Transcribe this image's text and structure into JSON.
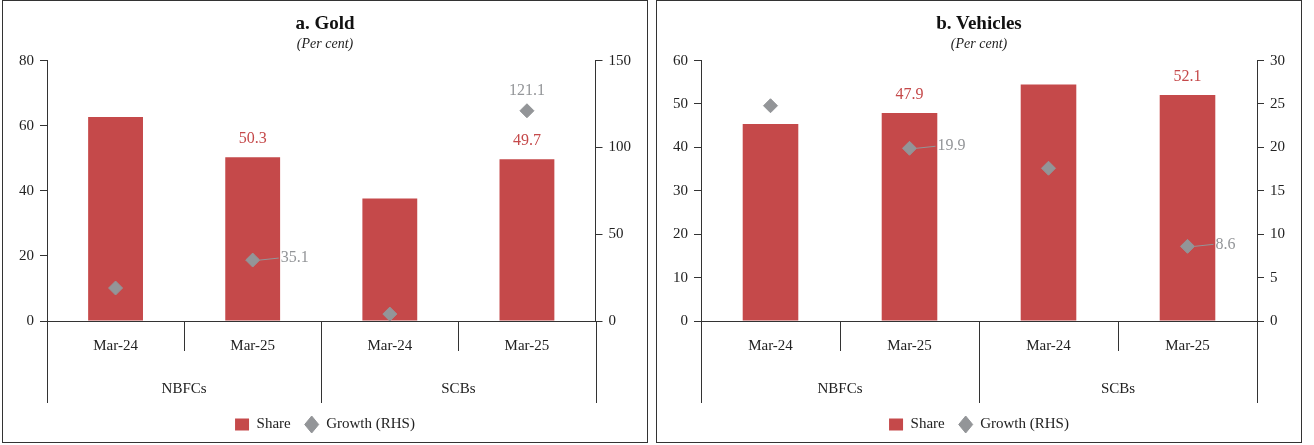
{
  "chart_data": [
    {
      "type": "bar",
      "title": "a. Gold",
      "subtitle": "(Per cent)",
      "categories": [
        "Mar-24",
        "Mar-25",
        "Mar-24",
        "Mar-25"
      ],
      "series": [
        {
          "name": "Share",
          "color": "#c5494a",
          "values": [
            62.7,
            50.3,
            37.6,
            49.7
          ],
          "value_labels": [
            null,
            "50.3",
            null,
            "49.7"
          ]
        },
        {
          "name": "Growth (RHS)",
          "type": "scatter",
          "axis": "y2",
          "color": "#939598",
          "values": [
            19,
            35.1,
            4,
            121.1
          ],
          "value_labels": [
            null,
            "35.1",
            null,
            "121.1"
          ]
        }
      ],
      "ylim": [
        0,
        80
      ],
      "yticks": [
        0,
        20,
        40,
        60,
        80
      ],
      "y2lim": [
        0,
        150
      ],
      "y2ticks": [
        0,
        50,
        100,
        150
      ],
      "marker": "diamond",
      "legend": "bottom",
      "annotations": [
        "NBFCs",
        "SCBs"
      ]
    },
    {
      "type": "bar",
      "title": "b. Vehicles",
      "subtitle": "(Per cent)",
      "categories": [
        "Mar-24",
        "Mar-25",
        "Mar-24",
        "Mar-25"
      ],
      "series": [
        {
          "name": "Share",
          "color": "#c5494a",
          "values": [
            45.4,
            47.9,
            54.5,
            52.1
          ],
          "value_labels": [
            null,
            "47.9",
            null,
            "52.1"
          ]
        },
        {
          "name": "Growth (RHS)",
          "type": "scatter",
          "axis": "y2",
          "color": "#939598",
          "values": [
            24.8,
            19.9,
            17.6,
            8.6
          ],
          "value_labels": [
            null,
            "19.9",
            null,
            "8.6"
          ]
        }
      ],
      "ylim": [
        0,
        60
      ],
      "yticks": [
        0,
        10,
        20,
        30,
        40,
        50,
        60
      ],
      "y2lim": [
        0,
        30
      ],
      "y2ticks": [
        0,
        5,
        10,
        15,
        20,
        25,
        30
      ],
      "marker": "diamond",
      "legend": "bottom",
      "annotations": [
        "NBFCs",
        "SCBs"
      ]
    }
  ]
}
